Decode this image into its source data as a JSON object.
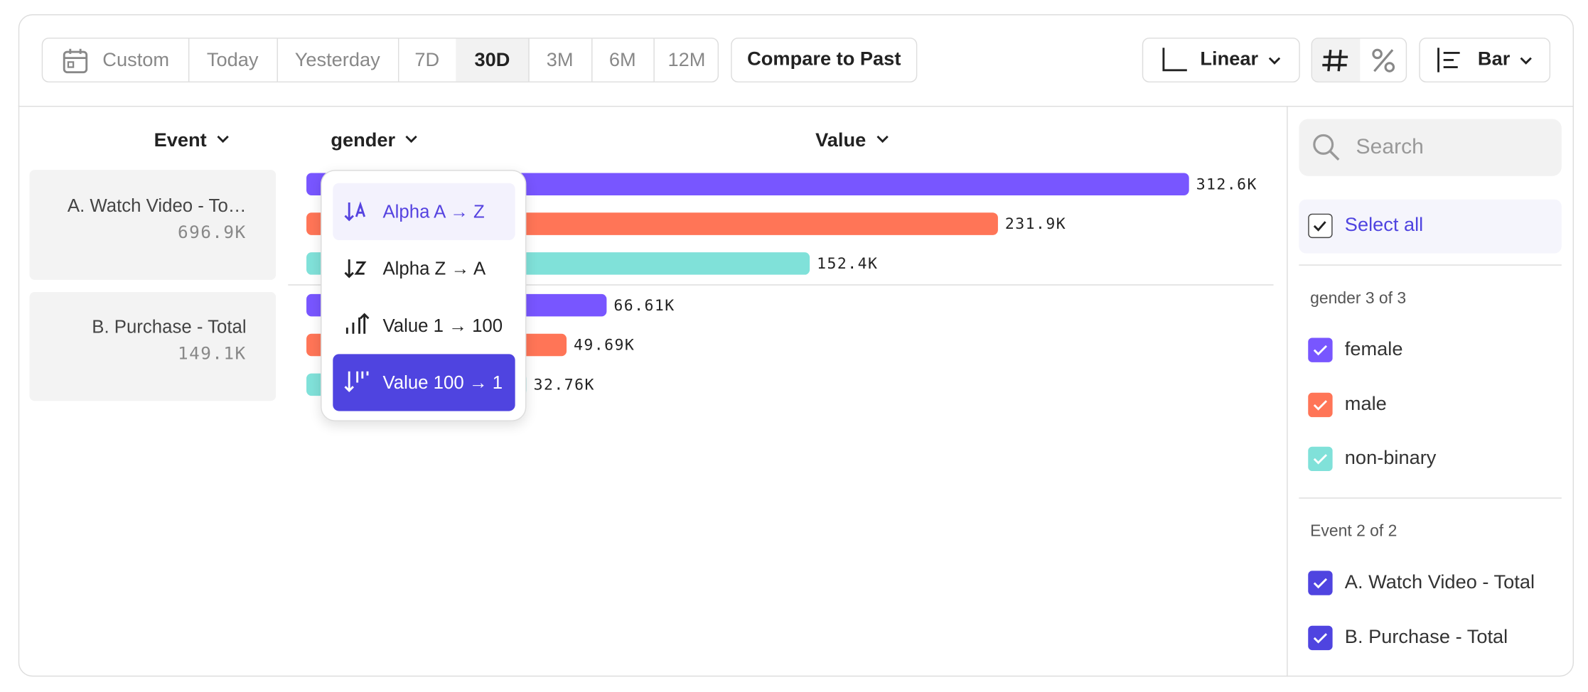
{
  "toolbar": {
    "date_ranges": [
      "Custom",
      "Today",
      "Yesterday",
      "7D",
      "30D",
      "3M",
      "6M",
      "12M"
    ],
    "compare": "Compare to Past",
    "scale": "Linear",
    "chart_type": "Bar"
  },
  "table": {
    "headers": [
      "Event",
      "gender",
      "Value"
    ],
    "totals": [
      "696.9K",
      "149.1K"
    ]
  },
  "chart_data": {
    "type": "bar",
    "orientation": "horizontal",
    "categories": [
      "A. Watch Video - To…",
      "B. Purchase - Total"
    ],
    "series": [
      {
        "name": "female",
        "color": "#7856ff",
        "values": [
          312600,
          66610
        ],
        "value_labels": [
          "312.6K",
          "66.61K"
        ]
      },
      {
        "name": "male",
        "color": "#ff7557",
        "values": [
          231900,
          49690
        ],
        "value_labels": [
          "231.9K",
          "49.69K"
        ]
      },
      {
        "name": "non-binary",
        "color": "#80e1d9",
        "values": [
          152400,
          32760
        ],
        "value_labels": [
          "152.4K",
          "32.76K"
        ]
      }
    ]
  },
  "sort_menu": [
    "Alpha A → Z",
    "Alpha Z → A",
    "Value 1 → 100",
    "Value 100 → 1"
  ],
  "sidebar": {
    "search": "Search",
    "select_all": "Select all",
    "gender_heading": "gender 3 of 3",
    "event_heading": "Event 2 of 2",
    "events": [
      "A. Watch Video - Total",
      "B. Purchase - Total"
    ]
  }
}
